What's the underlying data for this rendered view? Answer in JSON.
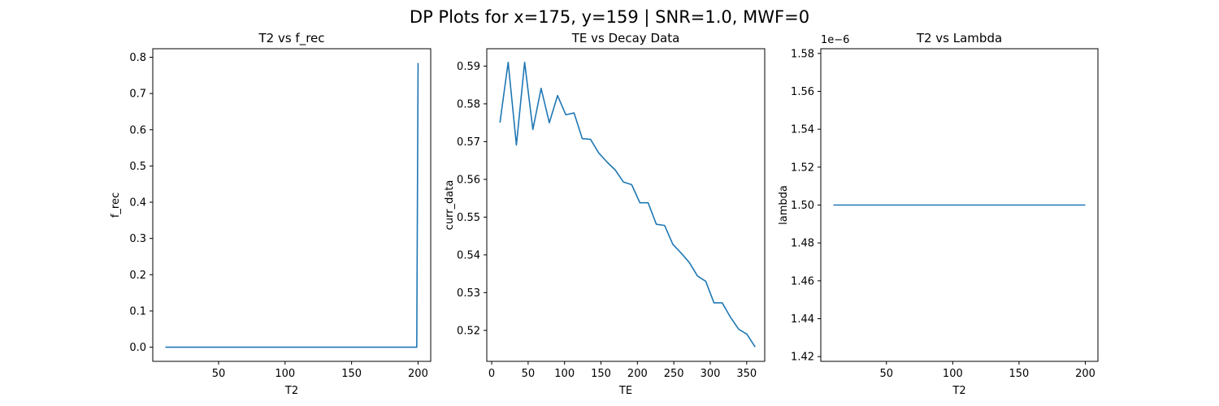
{
  "figure": {
    "suptitle": "DP Plots for x=175, y=159 | SNR=1.0, MWF=0",
    "line_color": "#1f77b4"
  },
  "chart_data": [
    {
      "type": "line",
      "title": "T2 vs f_rec",
      "xlabel": "T2",
      "ylabel": "f_rec",
      "xlim": [
        0.5,
        209.5
      ],
      "ylim": [
        -0.039,
        0.8235
      ],
      "xticks": [
        50,
        100,
        150,
        200
      ],
      "xtick_labels": [
        "50",
        "100",
        "150",
        "200"
      ],
      "yticks": [
        0.0,
        0.1,
        0.2,
        0.3,
        0.4,
        0.5,
        0.6,
        0.7,
        0.8
      ],
      "ytick_labels": [
        "0.0",
        "0.1",
        "0.2",
        "0.3",
        "0.4",
        "0.5",
        "0.6",
        "0.7",
        "0.8"
      ],
      "offset_text": "",
      "series": [
        {
          "x": [
            10,
            20,
            50,
            100,
            150,
            190,
            198,
            199,
            200
          ],
          "y": [
            0,
            0,
            0,
            0,
            0,
            0,
            0,
            0.0,
            0.784
          ]
        }
      ]
    },
    {
      "type": "line",
      "title": "TE vs Decay Data",
      "xlabel": "TE",
      "ylabel": "curr_data",
      "xlim": [
        -6.75,
        374.75
      ],
      "ylim": [
        0.5118,
        0.5946
      ],
      "xticks": [
        0,
        50,
        100,
        150,
        200,
        250,
        300,
        350
      ],
      "xtick_labels": [
        "0",
        "50",
        "100",
        "150",
        "200",
        "250",
        "300",
        "350"
      ],
      "yticks": [
        0.52,
        0.53,
        0.54,
        0.55,
        0.56,
        0.57,
        0.58,
        0.59
      ],
      "ytick_labels": [
        "0.52",
        "0.53",
        "0.54",
        "0.55",
        "0.56",
        "0.57",
        "0.58",
        "0.59"
      ],
      "offset_text": "",
      "series": [
        {
          "x": [
            11.3,
            22.6,
            33.9,
            45.2,
            56.5,
            67.8,
            79.1,
            90.4,
            101.7,
            113.0,
            124.3,
            135.6,
            146.9,
            158.2,
            169.5,
            180.8,
            192.1,
            203.4,
            214.7,
            226.0,
            237.3,
            248.6,
            259.9,
            271.2,
            282.5,
            293.8,
            305.1,
            316.4,
            327.7,
            339.0,
            350.3,
            361.6
          ],
          "y": [
            0.575,
            0.591,
            0.5691,
            0.591,
            0.5732,
            0.5841,
            0.575,
            0.5822,
            0.5771,
            0.5776,
            0.5708,
            0.5706,
            0.567,
            0.5646,
            0.5625,
            0.5593,
            0.5586,
            0.5538,
            0.5538,
            0.5481,
            0.5478,
            0.5428,
            0.5405,
            0.538,
            0.5344,
            0.533,
            0.5273,
            0.5273,
            0.5235,
            0.5203,
            0.519,
            0.5156
          ]
        }
      ]
    },
    {
      "type": "line",
      "title": "T2 vs Lambda",
      "xlabel": "T2",
      "ylabel": "lambda",
      "xlim": [
        0.5,
        209.5
      ],
      "ylim": [
        1.4175,
        1.5825
      ],
      "xticks": [
        50,
        100,
        150,
        200
      ],
      "xtick_labels": [
        "50",
        "100",
        "150",
        "200"
      ],
      "yticks": [
        1.42,
        1.44,
        1.46,
        1.48,
        1.5,
        1.52,
        1.54,
        1.56,
        1.58
      ],
      "ytick_labels": [
        "1.42",
        "1.44",
        "1.46",
        "1.48",
        "1.50",
        "1.52",
        "1.54",
        "1.56",
        "1.58"
      ],
      "offset_text": "1e−6",
      "series": [
        {
          "x": [
            10,
            200
          ],
          "y": [
            1.5,
            1.5
          ]
        }
      ]
    }
  ]
}
